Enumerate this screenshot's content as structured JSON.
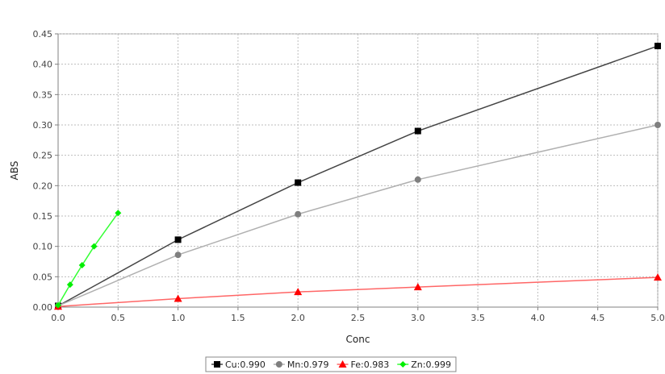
{
  "chart_data": {
    "type": "line",
    "xlabel": "Conc",
    "ylabel": "ABS",
    "xlim": [
      0.0,
      5.0
    ],
    "ylim": [
      0.0,
      0.45
    ],
    "xticks": [
      "0.0",
      "0.5",
      "1.0",
      "1.5",
      "2.0",
      "2.5",
      "3.0",
      "3.5",
      "4.0",
      "4.5",
      "5.0"
    ],
    "yticks": [
      "0.00",
      "0.05",
      "0.10",
      "0.15",
      "0.20",
      "0.25",
      "0.30",
      "0.35",
      "0.40",
      "0.45"
    ],
    "grid": true,
    "legend_position": "bottom-center",
    "series": [
      {
        "name": "Cu:0.990",
        "color": "#000000",
        "line_color": "#444444",
        "marker": "square",
        "x": [
          0.0,
          1.0,
          2.0,
          3.0,
          5.0
        ],
        "y": [
          0.002,
          0.111,
          0.205,
          0.29,
          0.43
        ]
      },
      {
        "name": "Mn:0.979",
        "color": "#7f7f7f",
        "line_color": "#b0b0b0",
        "marker": "circle",
        "x": [
          0.0,
          1.0,
          2.0,
          3.0,
          5.0
        ],
        "y": [
          0.002,
          0.086,
          0.153,
          0.21,
          0.3
        ]
      },
      {
        "name": "Fe:0.983",
        "color": "#ff0000",
        "line_color": "#ff6666",
        "marker": "triangle",
        "x": [
          0.0,
          1.0,
          2.0,
          3.0,
          5.0
        ],
        "y": [
          0.001,
          0.014,
          0.025,
          0.033,
          0.049
        ]
      },
      {
        "name": "Zn:0.999",
        "color": "#00ee00",
        "line_color": "#33ff33",
        "marker": "diamond",
        "x": [
          0.0,
          0.1,
          0.2,
          0.3,
          0.5
        ],
        "y": [
          0.003,
          0.037,
          0.069,
          0.1,
          0.155
        ]
      }
    ]
  }
}
